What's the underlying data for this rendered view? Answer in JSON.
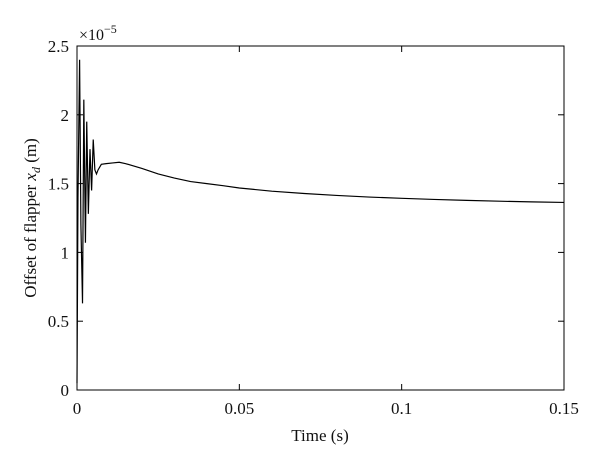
{
  "chart_data": {
    "type": "line",
    "xlabel": "Time (s)",
    "ylabel_prefix": "Offset of flapper ",
    "ylabel_var": "x",
    "ylabel_sub": "d",
    "ylabel_suffix": " (m)",
    "y_multiplier": "×10",
    "y_multiplier_exp": "−5",
    "xlim": [
      0,
      0.15
    ],
    "ylim": [
      0,
      2.5
    ],
    "x_ticks": [
      0,
      0.05,
      0.1,
      0.15
    ],
    "x_tick_labels": [
      "0",
      "0.05",
      "0.1",
      "0.15"
    ],
    "y_ticks": [
      0,
      0.5,
      1,
      1.5,
      2,
      2.5
    ],
    "y_tick_labels": [
      "0",
      "0.5",
      "1",
      "1.5",
      "2",
      "2.5"
    ],
    "grid": false,
    "series": [
      {
        "color": "#000000",
        "x": [
          0,
          0.0003,
          0.0008,
          0.0012,
          0.0017,
          0.0021,
          0.0026,
          0.003,
          0.0035,
          0.004,
          0.0045,
          0.005,
          0.0055,
          0.006,
          0.0065,
          0.0075,
          0.009,
          0.011,
          0.013,
          0.015,
          0.02,
          0.025,
          0.03,
          0.035,
          0.04,
          0.045,
          0.05,
          0.06,
          0.07,
          0.08,
          0.09,
          0.1,
          0.11,
          0.12,
          0.13,
          0.14,
          0.15
        ],
        "y": [
          0.05,
          1.4,
          2.4,
          1.2,
          0.63,
          2.11,
          1.07,
          1.95,
          1.28,
          1.75,
          1.45,
          1.82,
          1.6,
          1.57,
          1.6,
          1.64,
          1.645,
          1.65,
          1.655,
          1.645,
          1.61,
          1.57,
          1.54,
          1.515,
          1.5,
          1.485,
          1.468,
          1.445,
          1.428,
          1.414,
          1.402,
          1.393,
          1.385,
          1.378,
          1.372,
          1.367,
          1.363
        ]
      }
    ]
  }
}
